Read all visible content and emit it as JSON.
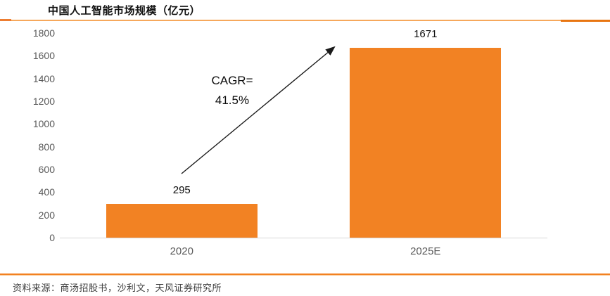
{
  "title": "中国人工智能市场规模（亿元）",
  "source": "资料来源：商汤招股书，沙利文，天风证券研究所",
  "annotation": {
    "line1": "CAGR=",
    "line2": "41.5%"
  },
  "colors": {
    "bar": "#f28223",
    "accent_rule_dark": "#ed7d31",
    "accent_rule_light": "#f6a85c",
    "bottom_rule": "#f28121",
    "axis_line": "#d8d8d8",
    "tick_text": "#595959",
    "value_text": "#0d0d0d",
    "source_text": "#3f3f3f"
  },
  "chart_data": {
    "type": "bar",
    "categories": [
      "2020",
      "2025E"
    ],
    "values": [
      295,
      1671
    ],
    "title": "中国人工智能市场规模（亿元）",
    "xlabel": "",
    "ylabel": "",
    "ylim": [
      0,
      1800
    ],
    "yticks": [
      0,
      200,
      400,
      600,
      800,
      1000,
      1200,
      1400,
      1600,
      1800
    ],
    "grid": false,
    "legend": "none",
    "annotation": "CAGR= 41.5%",
    "annotation_arrow": {
      "from_category": "2020",
      "to_category": "2025E"
    }
  }
}
